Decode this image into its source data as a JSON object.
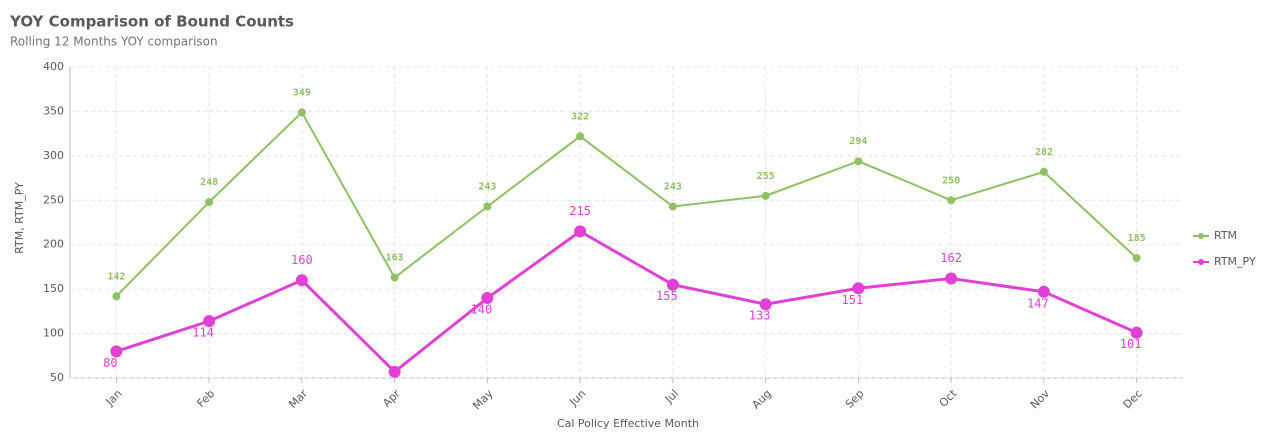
{
  "chart_data": {
    "type": "line",
    "title": "YOY Comparison of Bound Counts",
    "subtitle": "Rolling 12 Months YOY comparison",
    "x_label": "Cal Policy Effective Month",
    "y_label": "RTM, RTM_PY",
    "categories": [
      "Jan",
      "Feb",
      "Mar",
      "Apr",
      "May",
      "Jun",
      "Jul",
      "Aug",
      "Sep",
      "Oct",
      "Nov",
      "Dec"
    ],
    "series": [
      {
        "name": "RTM",
        "color": "#8dc163",
        "values": [
          142,
          248,
          349,
          163,
          243,
          322,
          243,
          255,
          294,
          250,
          282,
          185
        ]
      },
      {
        "name": "RTM_PY",
        "color": "#e040d6",
        "values": [
          80,
          114,
          160,
          57,
          140,
          215,
          155,
          133,
          151,
          162,
          147,
          101
        ],
        "value_labels": [
          "80",
          "114",
          "160",
          null,
          "140",
          "215",
          "155",
          "133",
          "151",
          "162",
          "147",
          "101"
        ]
      }
    ],
    "ylim": [
      50,
      400
    ],
    "yticks": [
      50,
      100,
      150,
      200,
      250,
      300,
      350,
      400
    ],
    "grid": true,
    "legend": "right"
  }
}
